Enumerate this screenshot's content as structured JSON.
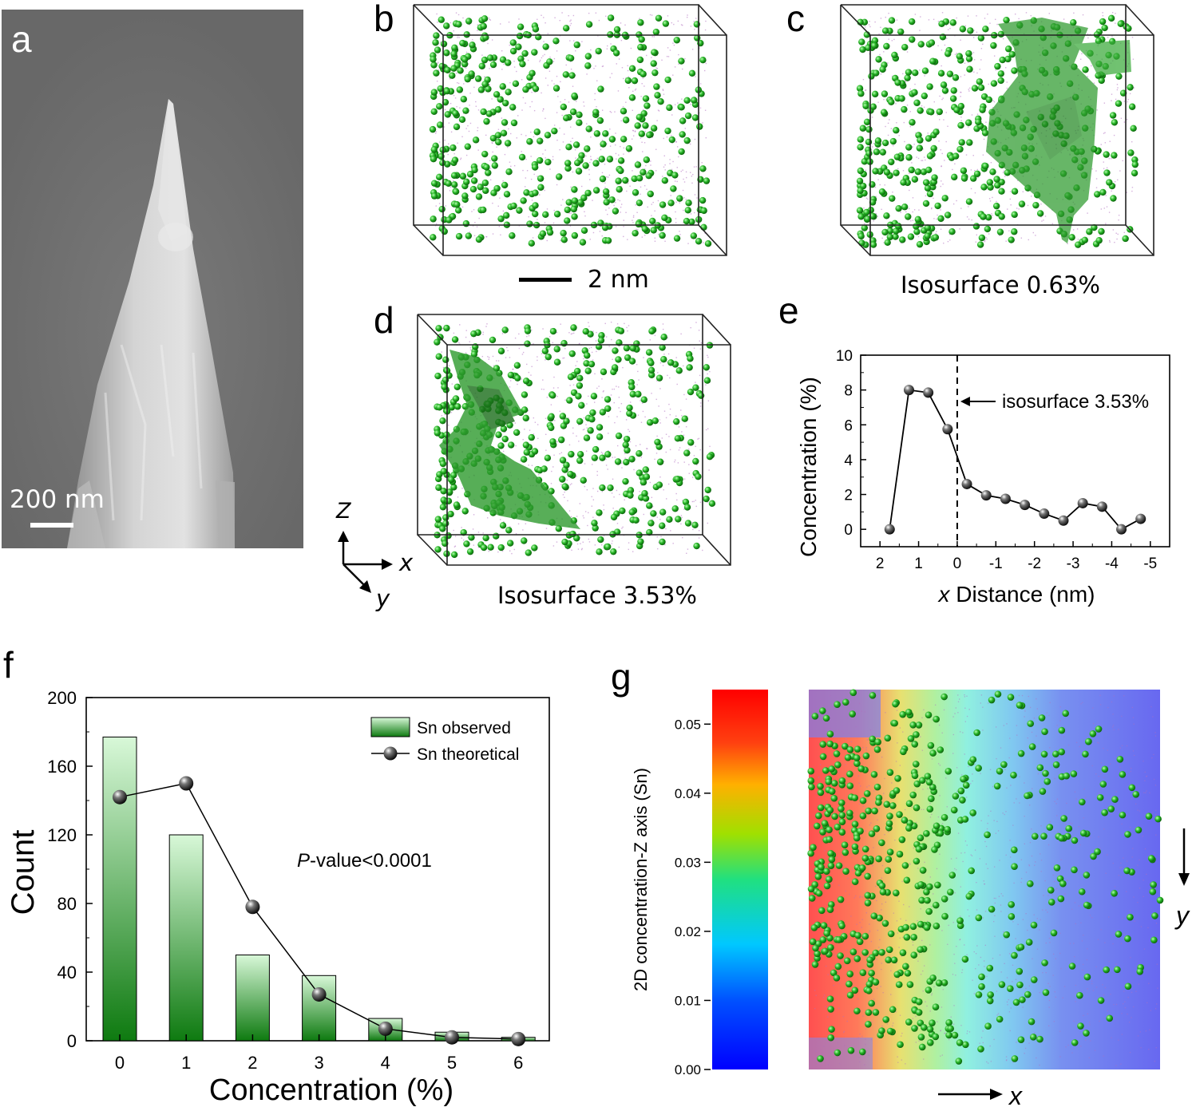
{
  "panels": {
    "a": {
      "label": "a",
      "scale_text": "200 nm"
    },
    "b": {
      "label": "b",
      "scale_text": "2 nm"
    },
    "c": {
      "label": "c",
      "caption": "Isosurface 0.63%"
    },
    "d": {
      "label": "d",
      "caption": "Isosurface 3.53%",
      "axis_z": "Z",
      "axis_x": "x",
      "axis_y": "y"
    },
    "e": {
      "label": "e"
    },
    "f": {
      "label": "f"
    },
    "g": {
      "label": "g",
      "axis_x": "x",
      "axis_y": "y"
    }
  },
  "chart_data": [
    {
      "id": "e",
      "type": "line",
      "xlabel_italic": "x",
      "xlabel": " Distance (nm)",
      "ylabel": "Concentration (%)",
      "x": [
        1.75,
        1.25,
        0.75,
        0.25,
        -0.25,
        -0.75,
        -1.25,
        -1.75,
        -2.25,
        -2.75,
        -3.25,
        -3.75,
        -4.25,
        -4.75
      ],
      "y": [
        0.0,
        8.0,
        7.85,
        5.75,
        2.6,
        1.95,
        1.75,
        1.4,
        0.9,
        0.5,
        1.5,
        1.3,
        0.0,
        0.6
      ],
      "xlim": [
        2.5,
        -5.5
      ],
      "ylim": [
        -1,
        10
      ],
      "xticks": [
        2,
        1,
        0,
        -1,
        -2,
        -3,
        -4,
        -5
      ],
      "xtick_labels": [
        "2",
        "1",
        "0",
        "-1",
        "-2",
        "-3",
        "-4",
        "-5"
      ],
      "yticks": [
        0,
        2,
        4,
        6,
        8,
        10
      ],
      "ytick_labels": [
        "0",
        "2",
        "4",
        "6",
        "8",
        "10"
      ],
      "annotation": "isosurface 3.53%",
      "vline_x": 0
    },
    {
      "id": "f",
      "type": "bar",
      "categories": [
        "0",
        "1",
        "2",
        "3",
        "4",
        "5",
        "6"
      ],
      "series": [
        {
          "name": "Sn observed",
          "kind": "bar",
          "values": [
            177,
            120,
            50,
            38,
            13,
            5,
            2
          ]
        },
        {
          "name": "Sn theoretical",
          "kind": "line",
          "values": [
            142,
            150,
            78,
            27,
            7,
            2,
            1
          ]
        }
      ],
      "xlabel": "Concentration (%)",
      "ylabel": "Count",
      "ylim": [
        0,
        200
      ],
      "yticks": [
        0,
        40,
        80,
        120,
        160,
        200
      ],
      "ytick_labels": [
        "0",
        "40",
        "80",
        "120",
        "160",
        "200"
      ],
      "annotation_italic": "P",
      "annotation": "-value<0.0001",
      "legend_position": "top-right"
    },
    {
      "id": "g",
      "type": "heatmap",
      "colorbar_label": "2D concentration-Z axis (Sn)",
      "colorbar_range": [
        0.0,
        0.055
      ],
      "colorbar_ticks": [
        0.0,
        0.01,
        0.02,
        0.03,
        0.04,
        0.05
      ],
      "colorbar_tick_labels": [
        "0.00",
        "0.01",
        "0.02",
        "0.03",
        "0.04",
        "0.05"
      ]
    }
  ],
  "colors": {
    "sem_bg": "#6e6e6e",
    "atom_green": "#22b022",
    "iso_green": "#2e9a2e",
    "bar_dark": "#0e7a10",
    "bar_light": "#d8f8d8",
    "purple_dots": "#b070c0"
  }
}
